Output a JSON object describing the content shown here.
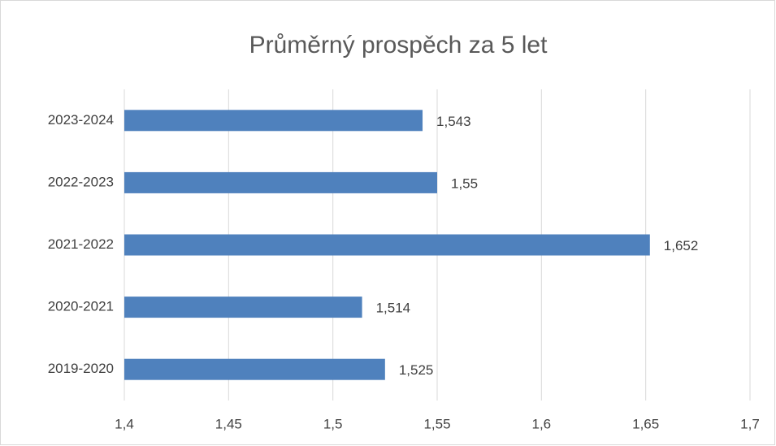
{
  "chart_data": {
    "type": "barh",
    "title": "Průměrný prospěch za 5 let",
    "categories": [
      "2019-2020",
      "2020-2021",
      "2021-2022",
      "2022-2023",
      "2023-2024"
    ],
    "values": [
      1.525,
      1.514,
      1.652,
      1.55,
      1.543
    ],
    "value_labels": [
      "1,525",
      "1,514",
      "1,652",
      "1,55",
      "1,543"
    ],
    "color": "#4f81bd",
    "xlim": [
      1.4,
      1.7
    ],
    "xticks": [
      {
        "value": 1.4,
        "label": "1,4"
      },
      {
        "value": 1.45,
        "label": "1,45"
      },
      {
        "value": 1.5,
        "label": "1,5"
      },
      {
        "value": 1.55,
        "label": "1,55"
      },
      {
        "value": 1.6,
        "label": "1,6"
      },
      {
        "value": 1.65,
        "label": "1,65"
      },
      {
        "value": 1.7,
        "label": "1,7"
      }
    ],
    "grid": true
  }
}
